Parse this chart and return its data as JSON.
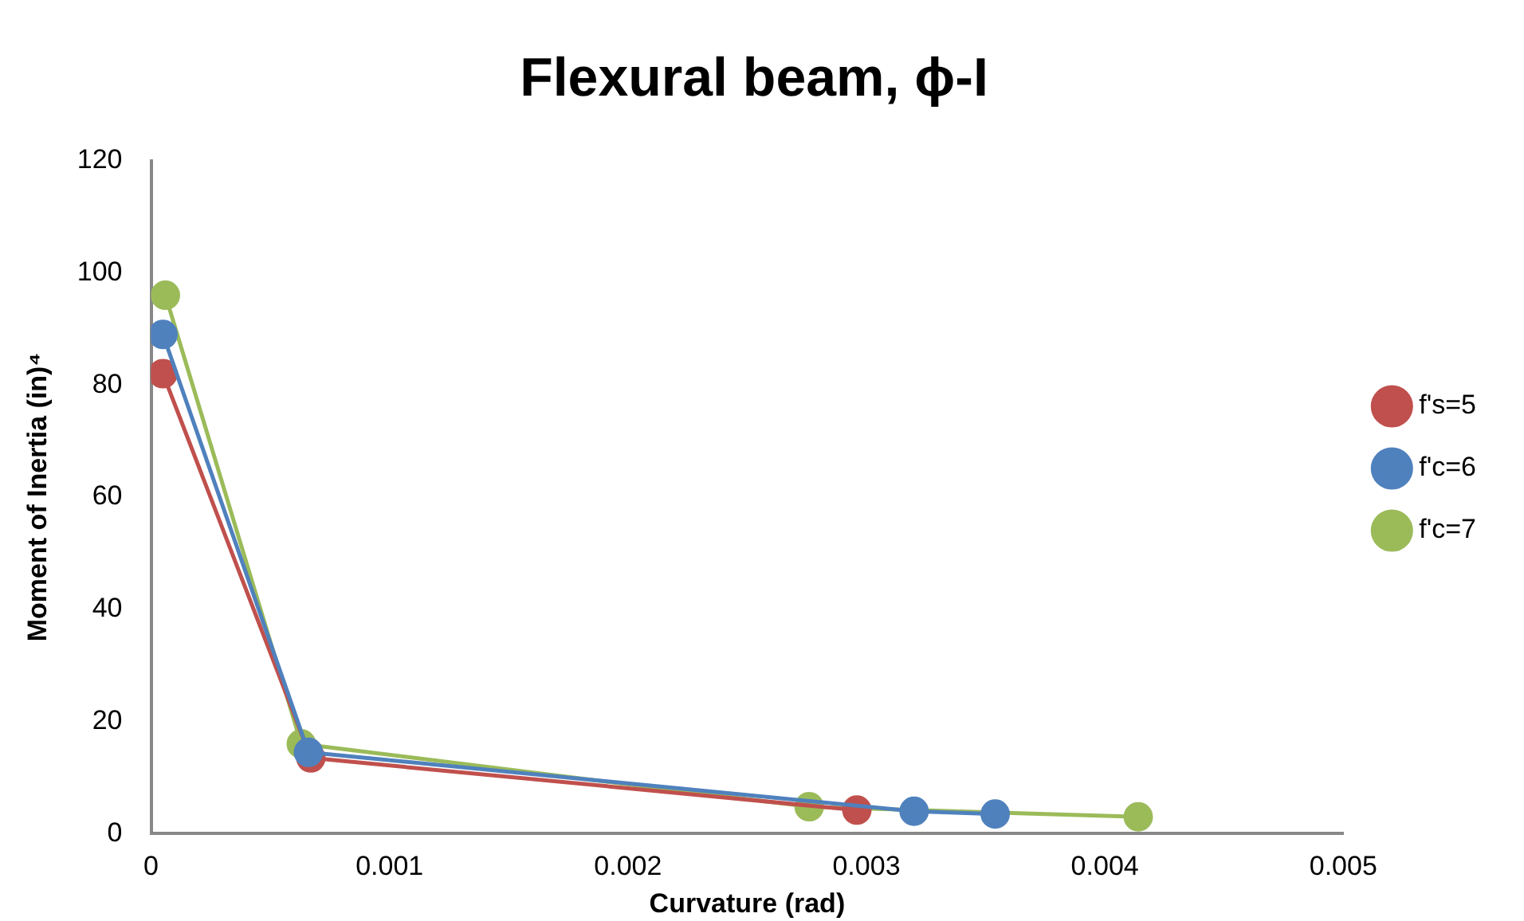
{
  "chart_data": {
    "type": "line",
    "title": "Flexural beam, ϕ-I",
    "xlabel": "Curvature (rad)",
    "ylabel": "Moment of Inertia (in)⁴",
    "xlim": [
      0,
      0.005
    ],
    "xticks": [
      0,
      0.001,
      0.002,
      0.003,
      0.004,
      0.005
    ],
    "ylim": [
      0,
      120
    ],
    "yticks": [
      0,
      20,
      40,
      60,
      80,
      100,
      120
    ],
    "grid": false,
    "legend": "right",
    "marker": "circle",
    "line_style": "solid",
    "series": [
      {
        "name": "f's=5",
        "color": "#c0504d",
        "x": [
          5e-05,
          0.00067,
          0.00296
        ],
        "values": [
          82,
          13.5,
          4.2
        ]
      },
      {
        "name": "f'c=6",
        "color": "#4f81bd",
        "x": [
          5e-05,
          0.00066,
          0.0032,
          0.00354
        ],
        "values": [
          89,
          14.5,
          4,
          3.5
        ]
      },
      {
        "name": "f'c=7",
        "color": "#9bbb59",
        "x": [
          6e-05,
          0.00063,
          0.00276,
          0.00414
        ],
        "values": [
          96,
          16,
          4.8,
          3
        ]
      }
    ]
  }
}
